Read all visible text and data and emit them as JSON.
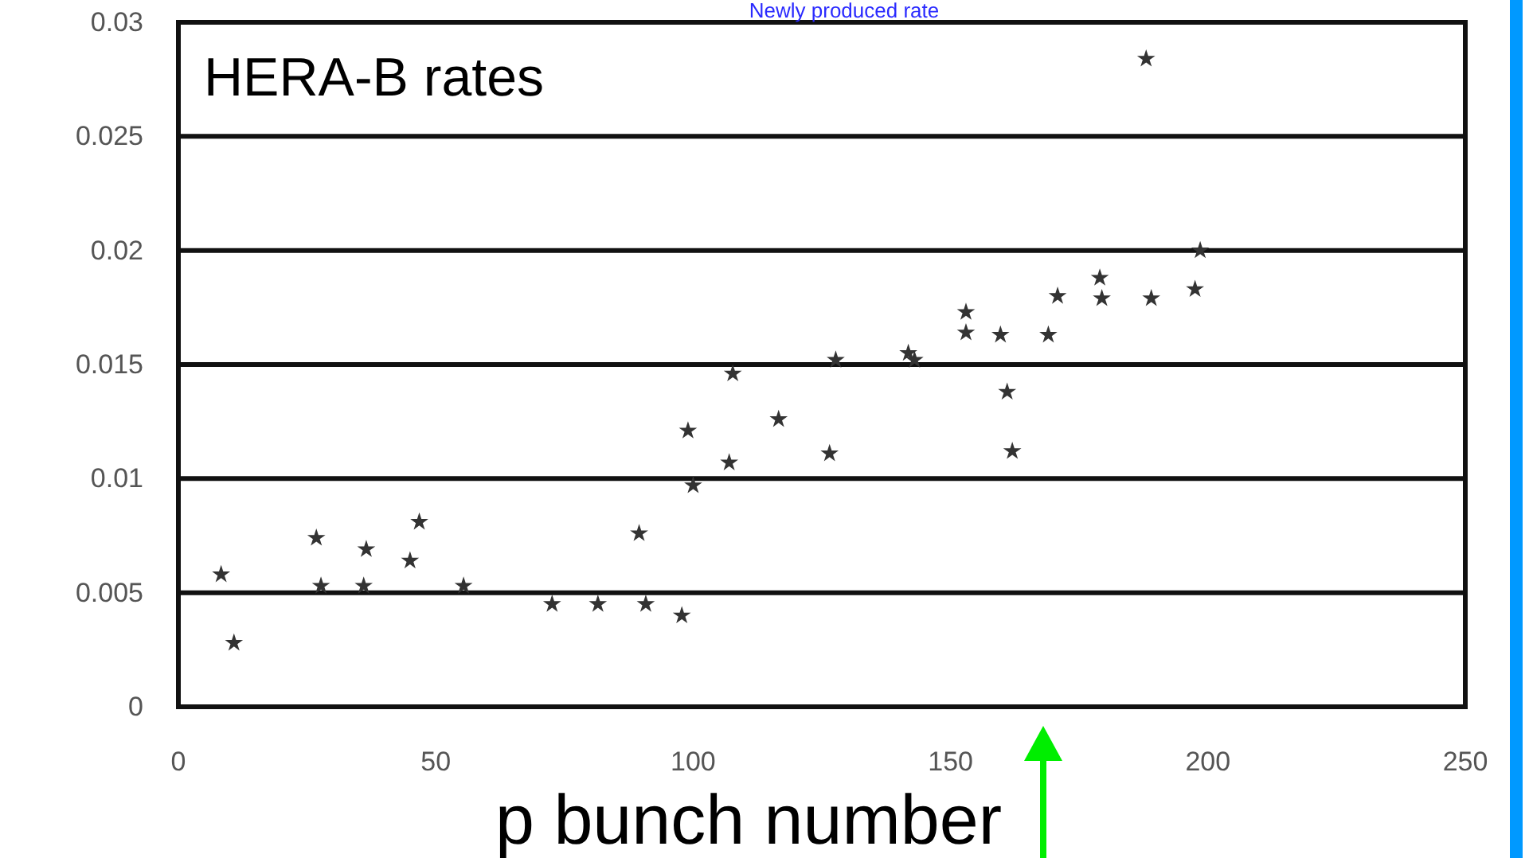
{
  "chart_data": {
    "type": "scatter",
    "title": "Newly produced rate",
    "xlabel": "p bunch number",
    "annotations": [
      "HERA-B rates"
    ],
    "x": [
      8.3,
      10.8,
      26.8,
      27.7,
      36.5,
      36,
      46.8,
      45,
      55.4,
      72.6,
      81.5,
      89.5,
      90.8,
      97.8,
      99,
      100,
      107.7,
      107,
      116.6,
      126.5,
      127.7,
      141.8,
      143,
      153,
      153,
      159.7,
      161,
      162,
      169,
      170.8,
      179,
      179.4,
      189,
      188,
      197.5,
      198.5
    ],
    "series": [
      {
        "color": "#333333",
        "values": [
          0.0058,
          0.0028,
          0.0074,
          0.0053,
          0.0069,
          0.0053,
          0.0081,
          0.0064,
          0.0053,
          0.0045,
          0.0045,
          0.0076,
          0.0045,
          0.004,
          0.0121,
          0.0097,
          0.0146,
          0.0107,
          0.0126,
          0.0111,
          0.0152,
          0.0155,
          0.0152,
          0.0164,
          0.0173,
          0.0163,
          0.0138,
          0.0112,
          0.0163,
          0.018,
          0.0188,
          0.0179,
          0.0179,
          0.0284,
          0.0183,
          0.02
        ]
      }
    ],
    "xlim": [
      0,
      250
    ],
    "xticks": [
      0,
      50,
      100,
      150,
      200,
      250
    ],
    "ylim": [
      0,
      0.03
    ],
    "yticks": [
      0,
      0.005,
      0.01,
      0.015,
      0.02,
      0.025,
      0.03
    ],
    "grid": "y",
    "marker": "star"
  }
}
